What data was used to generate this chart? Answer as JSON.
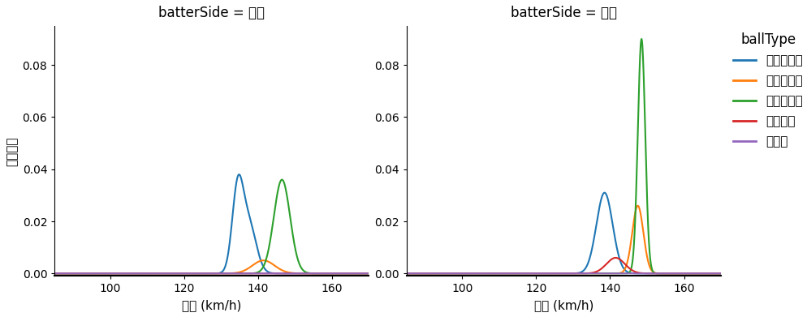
{
  "title_left": "batterSide = 右打",
  "title_right": "batterSide = 左打",
  "xlabel": "球速 (km/h)",
  "ylabel": "確率密度",
  "legend_title": "ballType",
  "ball_types": [
    "スライダー",
    "ワンシーム",
    "ストレート",
    "フォーク",
    "カーブ"
  ],
  "colors": [
    "#1f77b4",
    "#ff7f0e",
    "#2ca02c",
    "#d62728",
    "#9467bd"
  ],
  "xlim": [
    85,
    170
  ],
  "ylim": [
    -0.001,
    0.095
  ],
  "xticks": [
    100,
    120,
    140,
    160
  ],
  "yticks": [
    0.0,
    0.02,
    0.04,
    0.06,
    0.08
  ],
  "right_data": {
    "スライダー": [
      {
        "mean": 134.5,
        "std": 1.5,
        "weight": 0.55
      },
      {
        "mean": 137.5,
        "std": 2.0,
        "weight": 0.45
      }
    ],
    "ワンシーム": [
      {
        "mean": 141.5,
        "std": 3.0,
        "weight": 1.0
      }
    ],
    "ストレート": [
      {
        "mean": 146.5,
        "std": 2.2,
        "weight": 1.0
      }
    ],
    "フォーク": [],
    "カーブ": []
  },
  "right_scales": {
    "スライダー": 0.038,
    "ワンシーム": 0.005,
    "ストレート": 0.036,
    "フォーク": 0.0,
    "カーブ": 0.0
  },
  "left_data": {
    "スライダー": [
      {
        "mean": 138.5,
        "std": 2.2,
        "weight": 1.0
      }
    ],
    "ワンシーム": [
      {
        "mean": 147.5,
        "std": 1.5,
        "weight": 1.0
      }
    ],
    "ストレート": [
      {
        "mean": 148.5,
        "std": 1.0,
        "weight": 1.0
      }
    ],
    "フォーク": [
      {
        "mean": 141.5,
        "std": 2.5,
        "weight": 1.0
      }
    ],
    "カーブ": []
  },
  "left_scales": {
    "スライダー": 0.031,
    "ワンシーム": 0.026,
    "ストレート": 0.09,
    "フォーク": 0.006,
    "カーブ": 0.0
  },
  "background_color": "#ffffff"
}
